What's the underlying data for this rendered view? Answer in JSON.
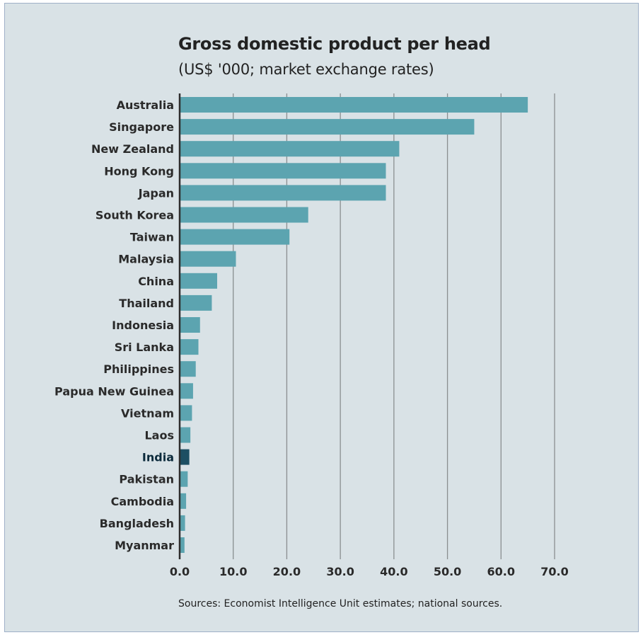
{
  "chart_data": {
    "type": "bar",
    "orientation": "horizontal",
    "title": "Gross domestic product per head",
    "subtitle": "(US$ '000; market exchange rates)",
    "source": "Sources: Economist Intelligence Unit estimates; national sources.",
    "categories": [
      "Australia",
      "Singapore",
      "New Zealand",
      "Hong Kong",
      "Japan",
      "South Korea",
      "Taiwan",
      "Malaysia",
      "China",
      "Thailand",
      "Indonesia",
      "Sri Lanka",
      "Philippines",
      "Papua New Guinea",
      "Vietnam",
      "Laos",
      "India",
      "Pakistan",
      "Cambodia",
      "Bangladesh",
      "Myanmar"
    ],
    "values": [
      65.0,
      55.0,
      41.0,
      38.5,
      38.5,
      24.0,
      20.5,
      10.5,
      7.0,
      6.0,
      3.8,
      3.5,
      3.0,
      2.5,
      2.3,
      2.0,
      1.8,
      1.5,
      1.2,
      1.0,
      0.9
    ],
    "highlight": "India",
    "xlim": [
      0,
      70
    ],
    "xticks": [
      "0.0",
      "10.0",
      "20.0",
      "30.0",
      "40.0",
      "50.0",
      "60.0",
      "70.0"
    ],
    "grid": "vertical",
    "colors": {
      "bar": "#5ca4b0",
      "highlight_bar": "#1d4f63",
      "background": "#d9e2e6",
      "grid": "#8a8e90"
    }
  }
}
